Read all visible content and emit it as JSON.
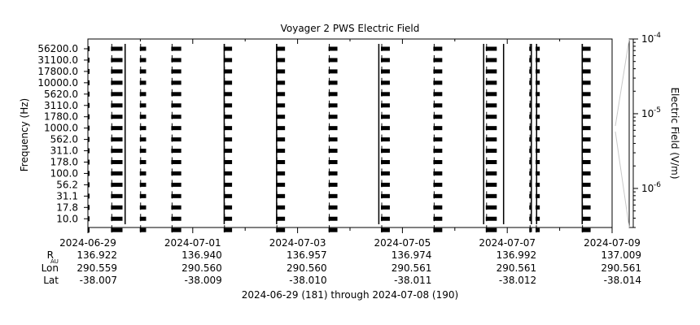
{
  "chart_data": {
    "type": "heatmap",
    "title": "Voyager 2 PWS Electric Field",
    "ylabel": "Frequency (Hz)",
    "colorbar_label": "Electric Field (V/m)",
    "xlabel": "2024-06-29 (181) through 2024-07-08 (190)",
    "x_range": [
      "2024-06-29",
      "2024-07-09"
    ],
    "x_tick_labels": [
      "2024-06-29",
      "2024-07-01",
      "2024-07-03",
      "2024-07-05",
      "2024-07-07",
      "2024-07-09"
    ],
    "x_tick_days": [
      0,
      2,
      4,
      6,
      8,
      10
    ],
    "frequency_channels": [
      "56200.0",
      "31100.0",
      "17800.0",
      "10000.0",
      "5620.0",
      "3110.0",
      "1780.0",
      "1000.0",
      "562.0",
      "311.0",
      "178.0",
      "100.0",
      "56.2",
      "31.1",
      "17.8",
      "10.0"
    ],
    "colorbar_ticks": [
      {
        "label": "10",
        "exp": "-4",
        "value": 0.0001
      },
      {
        "label": "10",
        "exp": "-5",
        "value": 1e-05
      },
      {
        "label": "10",
        "exp": "-6",
        "value": 1e-06
      }
    ],
    "colorbar_scale": "log",
    "colorbar_range": [
      3e-07,
      0.0001
    ],
    "observation_blocks_days": [
      [
        0.44,
        0.66
      ],
      [
        0.99,
        1.11
      ],
      [
        1.59,
        1.78
      ],
      [
        2.59,
        2.75
      ],
      [
        3.59,
        3.76
      ],
      [
        4.59,
        4.76
      ],
      [
        5.59,
        5.76
      ],
      [
        6.59,
        6.76
      ],
      [
        7.59,
        7.8
      ],
      [
        8.42,
        8.47
      ],
      [
        8.54,
        8.62
      ],
      [
        9.42,
        9.59
      ]
    ],
    "spikes_days": [
      0.71,
      2.6,
      3.6,
      5.55,
      7.55,
      7.93,
      8.46,
      8.56,
      9.43
    ],
    "ephemeris": {
      "labels": [
        "R",
        "Lon",
        "Lat"
      ],
      "r_subscript": "AU",
      "rows": [
        [
          "136.922",
          "136.940",
          "136.957",
          "136.974",
          "136.992",
          "137.009"
        ],
        [
          "290.559",
          "290.560",
          "290.560",
          "290.561",
          "290.561",
          "290.561"
        ],
        [
          "-38.007",
          "-38.009",
          "-38.010",
          "-38.011",
          "-38.012",
          "-38.014"
        ]
      ]
    },
    "grid": false,
    "legend": "colorbar-right"
  }
}
